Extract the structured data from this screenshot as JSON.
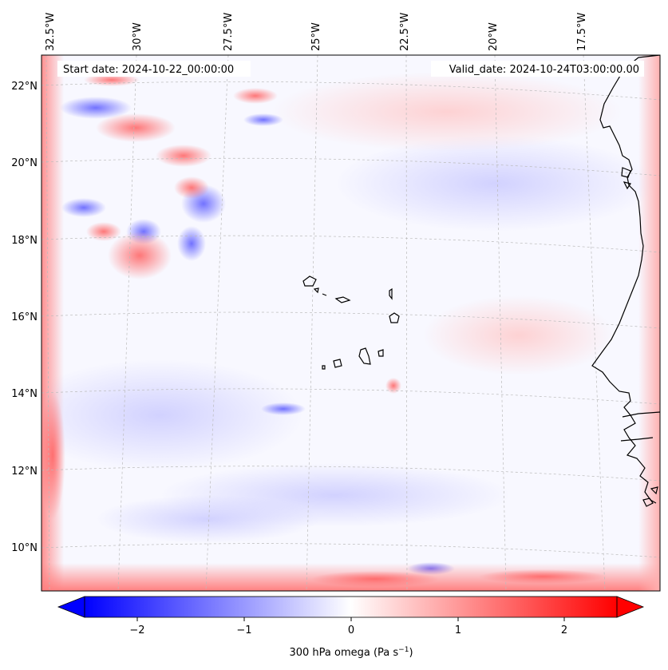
{
  "figure": {
    "start_label": "Start date: 2024-10-22_00:00:00",
    "valid_label": "Valid_date: 2024-10-24T03:00:00.00"
  },
  "map": {
    "projection": "conic-like, tilted graticule",
    "longitude_labels": [
      "32.5°W",
      "30°W",
      "27.5°W",
      "25°W",
      "22.5°W",
      "20°W",
      "17.5°W"
    ],
    "latitude_labels": [
      "22°N",
      "20°N",
      "18°N",
      "16°N",
      "14°N",
      "12°N",
      "10°N"
    ],
    "gridlines": true,
    "features": [
      "Cape Verde islands",
      "West African coastline (Mauritania, Senegal, Gambia, Guinea-Bissau)"
    ],
    "field": {
      "description_mapped": "300 hPa omega",
      "pattern_notes": [
        "strong mixed red/blue couplets in north-west quadrant (~18-22°N, 30-27°W)",
        "mostly weak values over open ocean",
        "red boundary artifacts along left and bottom frame edges"
      ]
    }
  },
  "colorbar": {
    "ticks": [
      "−2",
      "−1",
      "0",
      "1",
      "2"
    ],
    "tick_values": [
      -2,
      -1,
      0,
      1,
      2
    ],
    "range": [
      -2.5,
      2.5
    ],
    "extend": "both",
    "colormap": "bwr",
    "label_prefix": "300 hPa omega (Pa s",
    "label_exponent": "−1",
    "label_suffix": ")"
  },
  "colors": {
    "negative": "#0000ff",
    "zero": "#ffffff",
    "positive": "#ff0000",
    "coast": "#000000",
    "grid": "#bbbbbb"
  }
}
